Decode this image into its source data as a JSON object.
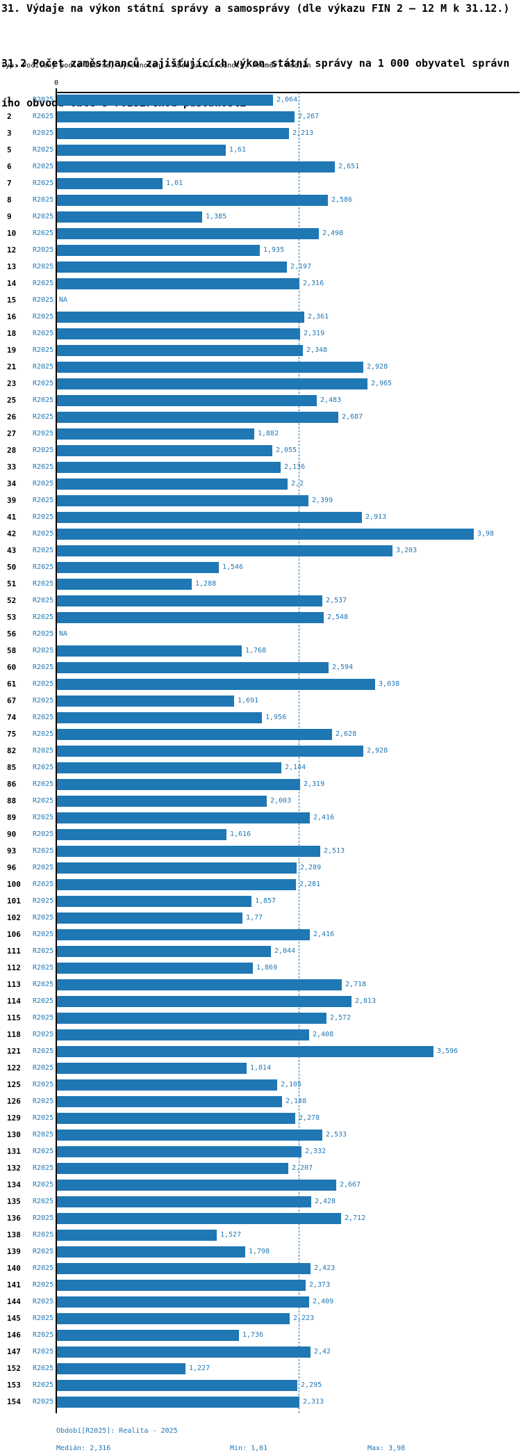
{
  "header": {
    "title": "31. Výdaje na výkon státní správy a samosprávy (dle výkazu FIN 2 – 12 M k 31.12.)",
    "subtitle_line1": "31.2 Počet zaměstnanců zajišťujících výkon státní správy na 1 000 obyvatel správn",
    "subtitle_line2": "ího obvodu obce s rozšířenou působností",
    "meta": "Typ: Počítaný podle vzorce, Vyhodnocení: Absolutní hodnoty, Průměr: Medián"
  },
  "chart_data": {
    "type": "bar",
    "orientation": "horizontal",
    "series_name": "R2025",
    "title": "31.2 Počet zaměstnanců zajišťujících výkon státní správy na 1 000 obyvatel správního obvodu obce s rozšířenou působností",
    "xlabel": "",
    "ylabel": "",
    "xlim": [
      0,
      4.44
    ],
    "zero_tick": "0",
    "grid": false,
    "median_value": 2.316,
    "bar_color": "#1f77b4",
    "label_color": "#1f77b4",
    "na_text": "NA",
    "rows": [
      {
        "id": "1",
        "period": "R2025",
        "value": 2.064,
        "label": "2,064"
      },
      {
        "id": "2",
        "period": "R2025",
        "value": 2.267,
        "label": "2,267"
      },
      {
        "id": "3",
        "period": "R2025",
        "value": 2.213,
        "label": "2,213"
      },
      {
        "id": "5",
        "period": "R2025",
        "value": 1.61,
        "label": "1,61"
      },
      {
        "id": "6",
        "period": "R2025",
        "value": 2.651,
        "label": "2,651"
      },
      {
        "id": "7",
        "period": "R2025",
        "value": 1.01,
        "label": "1,01"
      },
      {
        "id": "8",
        "period": "R2025",
        "value": 2.586,
        "label": "2,586"
      },
      {
        "id": "9",
        "period": "R2025",
        "value": 1.385,
        "label": "1,385"
      },
      {
        "id": "10",
        "period": "R2025",
        "value": 2.498,
        "label": "2,498"
      },
      {
        "id": "12",
        "period": "R2025",
        "value": 1.935,
        "label": "1,935"
      },
      {
        "id": "13",
        "period": "R2025",
        "value": 2.197,
        "label": "2,197"
      },
      {
        "id": "14",
        "period": "R2025",
        "value": 2.316,
        "label": "2,316"
      },
      {
        "id": "15",
        "period": "R2025",
        "value": null,
        "label": "NA"
      },
      {
        "id": "16",
        "period": "R2025",
        "value": 2.361,
        "label": "2,361"
      },
      {
        "id": "18",
        "period": "R2025",
        "value": 2.319,
        "label": "2,319"
      },
      {
        "id": "19",
        "period": "R2025",
        "value": 2.348,
        "label": "2,348"
      },
      {
        "id": "21",
        "period": "R2025",
        "value": 2.928,
        "label": "2,928"
      },
      {
        "id": "23",
        "period": "R2025",
        "value": 2.965,
        "label": "2,965"
      },
      {
        "id": "25",
        "period": "R2025",
        "value": 2.483,
        "label": "2,483"
      },
      {
        "id": "26",
        "period": "R2025",
        "value": 2.687,
        "label": "2,687"
      },
      {
        "id": "27",
        "period": "R2025",
        "value": 1.882,
        "label": "1,882"
      },
      {
        "id": "28",
        "period": "R2025",
        "value": 2.055,
        "label": "2,055"
      },
      {
        "id": "33",
        "period": "R2025",
        "value": 2.136,
        "label": "2,136"
      },
      {
        "id": "34",
        "period": "R2025",
        "value": 2.2,
        "label": "2,2"
      },
      {
        "id": "39",
        "period": "R2025",
        "value": 2.399,
        "label": "2,399"
      },
      {
        "id": "41",
        "period": "R2025",
        "value": 2.913,
        "label": "2,913"
      },
      {
        "id": "42",
        "period": "R2025",
        "value": 3.98,
        "label": "3,98"
      },
      {
        "id": "43",
        "period": "R2025",
        "value": 3.203,
        "label": "3,203"
      },
      {
        "id": "50",
        "period": "R2025",
        "value": 1.546,
        "label": "1,546"
      },
      {
        "id": "51",
        "period": "R2025",
        "value": 1.288,
        "label": "1,288"
      },
      {
        "id": "52",
        "period": "R2025",
        "value": 2.537,
        "label": "2,537"
      },
      {
        "id": "53",
        "period": "R2025",
        "value": 2.548,
        "label": "2,548"
      },
      {
        "id": "56",
        "period": "R2025",
        "value": null,
        "label": "NA"
      },
      {
        "id": "58",
        "period": "R2025",
        "value": 1.768,
        "label": "1,768"
      },
      {
        "id": "60",
        "period": "R2025",
        "value": 2.594,
        "label": "2,594"
      },
      {
        "id": "61",
        "period": "R2025",
        "value": 3.038,
        "label": "3,038"
      },
      {
        "id": "67",
        "period": "R2025",
        "value": 1.691,
        "label": "1,691"
      },
      {
        "id": "74",
        "period": "R2025",
        "value": 1.956,
        "label": "1,956"
      },
      {
        "id": "75",
        "period": "R2025",
        "value": 2.628,
        "label": "2,628"
      },
      {
        "id": "82",
        "period": "R2025",
        "value": 2.928,
        "label": "2,928"
      },
      {
        "id": "85",
        "period": "R2025",
        "value": 2.144,
        "label": "2,144"
      },
      {
        "id": "86",
        "period": "R2025",
        "value": 2.319,
        "label": "2,319"
      },
      {
        "id": "88",
        "period": "R2025",
        "value": 2.003,
        "label": "2,003"
      },
      {
        "id": "89",
        "period": "R2025",
        "value": 2.416,
        "label": "2,416"
      },
      {
        "id": "90",
        "period": "R2025",
        "value": 1.616,
        "label": "1,616"
      },
      {
        "id": "93",
        "period": "R2025",
        "value": 2.513,
        "label": "2,513"
      },
      {
        "id": "96",
        "period": "R2025",
        "value": 2.289,
        "label": "2,289"
      },
      {
        "id": "100",
        "period": "R2025",
        "value": 2.281,
        "label": "2,281"
      },
      {
        "id": "101",
        "period": "R2025",
        "value": 1.857,
        "label": "1,857"
      },
      {
        "id": "102",
        "period": "R2025",
        "value": 1.77,
        "label": "1,77"
      },
      {
        "id": "106",
        "period": "R2025",
        "value": 2.416,
        "label": "2,416"
      },
      {
        "id": "111",
        "period": "R2025",
        "value": 2.044,
        "label": "2,044"
      },
      {
        "id": "112",
        "period": "R2025",
        "value": 1.869,
        "label": "1,869"
      },
      {
        "id": "113",
        "period": "R2025",
        "value": 2.718,
        "label": "2,718"
      },
      {
        "id": "114",
        "period": "R2025",
        "value": 2.813,
        "label": "2,813"
      },
      {
        "id": "115",
        "period": "R2025",
        "value": 2.572,
        "label": "2,572"
      },
      {
        "id": "118",
        "period": "R2025",
        "value": 2.408,
        "label": "2,408"
      },
      {
        "id": "121",
        "period": "R2025",
        "value": 3.596,
        "label": "3,596"
      },
      {
        "id": "122",
        "period": "R2025",
        "value": 1.814,
        "label": "1,814"
      },
      {
        "id": "125",
        "period": "R2025",
        "value": 2.105,
        "label": "2,105"
      },
      {
        "id": "126",
        "period": "R2025",
        "value": 2.148,
        "label": "2,148"
      },
      {
        "id": "129",
        "period": "R2025",
        "value": 2.278,
        "label": "2,278"
      },
      {
        "id": "130",
        "period": "R2025",
        "value": 2.533,
        "label": "2,533"
      },
      {
        "id": "131",
        "period": "R2025",
        "value": 2.332,
        "label": "2,332"
      },
      {
        "id": "132",
        "period": "R2025",
        "value": 2.207,
        "label": "2,207"
      },
      {
        "id": "134",
        "period": "R2025",
        "value": 2.667,
        "label": "2,667"
      },
      {
        "id": "135",
        "period": "R2025",
        "value": 2.428,
        "label": "2,428"
      },
      {
        "id": "136",
        "period": "R2025",
        "value": 2.712,
        "label": "2,712"
      },
      {
        "id": "138",
        "period": "R2025",
        "value": 1.527,
        "label": "1,527"
      },
      {
        "id": "139",
        "period": "R2025",
        "value": 1.798,
        "label": "1,798"
      },
      {
        "id": "140",
        "period": "R2025",
        "value": 2.423,
        "label": "2,423"
      },
      {
        "id": "141",
        "period": "R2025",
        "value": 2.373,
        "label": "2,373"
      },
      {
        "id": "144",
        "period": "R2025",
        "value": 2.409,
        "label": "2,409"
      },
      {
        "id": "145",
        "period": "R2025",
        "value": 2.223,
        "label": "2,223"
      },
      {
        "id": "146",
        "period": "R2025",
        "value": 1.736,
        "label": "1,736"
      },
      {
        "id": "147",
        "period": "R2025",
        "value": 2.42,
        "label": "2,42"
      },
      {
        "id": "152",
        "period": "R2025",
        "value": 1.227,
        "label": "1,227"
      },
      {
        "id": "153",
        "period": "R2025",
        "value": 2.295,
        "label": "2,295"
      },
      {
        "id": "154",
        "period": "R2025",
        "value": 2.313,
        "label": "2,313"
      }
    ]
  },
  "footer": {
    "period": "Období[R2025]: Realita - 2025",
    "median": "Medián: 2,316",
    "min": "Min: 1,01",
    "max": "Max: 3,98"
  }
}
